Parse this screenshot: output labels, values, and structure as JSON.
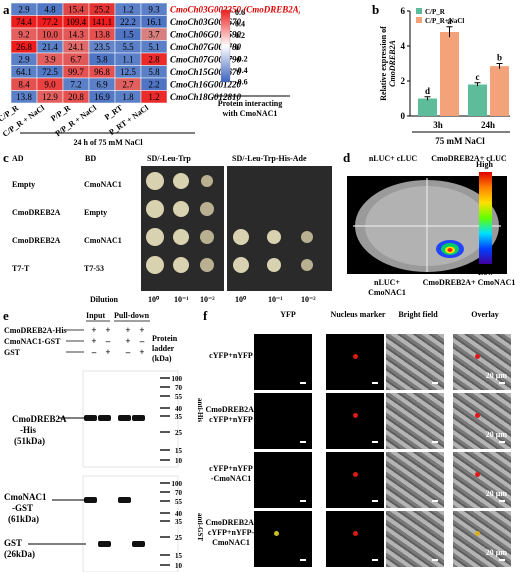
{
  "panel_a": {
    "label": "a",
    "columns": [
      "C/P_R",
      "C/P_R + NaCl",
      "P/P_R",
      "P/P_R + NaCl",
      "P_RT",
      "P_RT + NaCl"
    ],
    "genes": [
      "CmoCh03G003350 (CmoDREB2A)",
      "CmoCh03G007670",
      "CmoCh06G014590",
      "CmoCh07G004780",
      "CmoCh07G004790",
      "CmoCh15G009670",
      "CmoCh16G001220",
      "CmoCh18G012810"
    ],
    "values": [
      [
        "2.9",
        "4.8",
        "15.4",
        "25.2",
        "1.2",
        "9.3"
      ],
      [
        "74.4",
        "77.2",
        "109.4",
        "141.1",
        "22.2",
        "16.1"
      ],
      [
        "9.2",
        "10.0",
        "14.3",
        "13.8",
        "1.5",
        "3.7"
      ],
      [
        "26.8",
        "21.4",
        "24.1",
        "23.5",
        "5.5",
        "5.1"
      ],
      [
        "2.9",
        "3.9",
        "6.7",
        "5.8",
        "1.1",
        "2.8"
      ],
      [
        "64.1",
        "72.5",
        "99.7",
        "96.8",
        "12.5",
        "5.8"
      ],
      [
        "8.4",
        "9.0",
        "7.2",
        "6.9",
        "2.7",
        "2.2"
      ],
      [
        "13.8",
        "12.9",
        "20.8",
        "16.9",
        "1.8",
        "1.2"
      ]
    ],
    "colors": [
      [
        "#5b80c8",
        "#4f77c4",
        "#e04848",
        "#e43434",
        "#5b80c8",
        "#5b80c8"
      ],
      [
        "#ec1e1e",
        "#ee1c1c",
        "#ec1c1c",
        "#ee1c1c",
        "#5277c4",
        "#4e74c2"
      ],
      [
        "#e66060",
        "#e05252",
        "#e55858",
        "#e55050",
        "#4f74c3",
        "#d88080"
      ],
      [
        "#ee1c1c",
        "#5a80c8",
        "#e26a6a",
        "#6486c8",
        "#5b80c8",
        "#5b80c8"
      ],
      [
        "#5b80c8",
        "#e46060",
        "#e05858",
        "#4f74c3",
        "#5b80c8",
        "#ec2a2a"
      ],
      [
        "#5b80c8",
        "#5277c4",
        "#e55050",
        "#e55050",
        "#5b80c8",
        "#5b80c8"
      ],
      [
        "#e55050",
        "#ea4040",
        "#5b80c8",
        "#5b80c8",
        "#e06060",
        "#4f74c3"
      ],
      [
        "#5b80c8",
        "#e46060",
        "#e55050",
        "#5277c4",
        "#5b80c8",
        "#ec2a2a"
      ]
    ],
    "colorbar_ticks": [
      "0.6",
      "0.4",
      "0.2",
      "0",
      "-0.2",
      "-0.4",
      "-0.6"
    ],
    "bracket_label": "Protein interacting with CmoNAC1",
    "footer": "24 h of 75 mM NaCl"
  },
  "panel_b": {
    "label": "b",
    "footer": "75 mM NaCl"
  },
  "chart_data": {
    "type": "bar",
    "categories": [
      "3h",
      "24h"
    ],
    "series": [
      {
        "name": "C/P_R",
        "values": [
          1.0,
          1.8
        ],
        "errors": [
          0.1,
          0.1
        ],
        "letters": [
          "d",
          "c"
        ],
        "color": "#5dbd9a"
      },
      {
        "name": "C/P_R+NaCl",
        "values": [
          4.8,
          2.85
        ],
        "errors": [
          0.3,
          0.15
        ],
        "letters": [
          "a",
          "b"
        ],
        "color": "#f4a27a"
      }
    ],
    "ylabel": "Relative expression of CmoDREB2A",
    "ylim": [
      0,
      6
    ],
    "yticks": [
      "0",
      "2",
      "4",
      "6"
    ],
    "legend": "top-left"
  },
  "panel_c": {
    "label": "c",
    "header_ad": "AD",
    "header_bd": "BD",
    "media1": "SD/-Leu-Trp",
    "media2": "SD/-Leu-Trp-His-Ade",
    "rows": [
      {
        "ad": "Empty",
        "bd": "CmoNAC1"
      },
      {
        "ad": "CmoDREB2A",
        "bd": "Empty"
      },
      {
        "ad": "CmoDREB2A",
        "bd": "CmoNAC1"
      },
      {
        "ad": "T7-T",
        "bd": "T7-53"
      }
    ],
    "dilution_label": "Dilution",
    "dilutions": [
      "10⁰",
      "10⁻¹",
      "10⁻²",
      "10⁰",
      "10⁻¹",
      "10⁻²"
    ]
  },
  "panel_d": {
    "label": "d",
    "tl": "nLUC+ cLUC",
    "tr": "CmoDREB2A+ cLUC",
    "bl": "nLUC+ CmoNAC1",
    "br": "CmoDREB2A+ CmoNAC1",
    "scale_high": "High",
    "scale_low": "Low"
  },
  "panel_e": {
    "label": "e",
    "rows": [
      "CmoDREB2A-His",
      "CmoNAC1-GST",
      "GST"
    ],
    "signs": [
      [
        "+",
        "+",
        "+",
        "+"
      ],
      [
        "+",
        "–",
        "+",
        "–"
      ],
      [
        "–",
        "+",
        "–",
        "+"
      ]
    ],
    "input": "Input",
    "pulldown": "Pull-down",
    "ladder": "Protein ladder (kDa)",
    "ladder_top": [
      "100",
      "70",
      "55",
      "40",
      "35",
      "25",
      "15",
      "10"
    ],
    "ladder_bottom": [
      "100",
      "70",
      "55",
      "40",
      "35",
      "25",
      "15",
      "10"
    ],
    "anti_his": "anti-His",
    "anti_gst": "anti-GST",
    "band1": "CmoDREB2A -His (51kDa)",
    "band2": "CmoNAC1 -GST (61kDa)",
    "band3": "GST (26kDa)"
  },
  "panel_f": {
    "label": "f",
    "cols": [
      "YFP",
      "Nucleus marker",
      "Bright field",
      "Overlay"
    ],
    "rows": [
      "cYFP+nYFP",
      "CmoDREB2A-cYFP+nYFP",
      "cYFP+nYFP-CmoNAC1",
      "CmoDREB2A-cYFP+nYFP-CmoNAC1"
    ],
    "scale": "20 μm"
  }
}
